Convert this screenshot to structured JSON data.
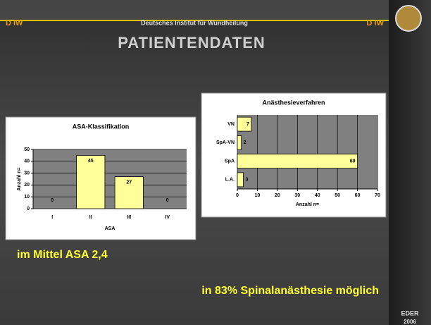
{
  "header": {
    "left": "D IW",
    "center": "Deutsches Institut für Wundheilung",
    "right": "D IW"
  },
  "title": "PATIENTENDATEN",
  "notes": [
    "im Mittel ASA 2,4",
    "in 83% Spinalanästhesie möglich"
  ],
  "footer": {
    "name": "EDER",
    "year": "2006"
  },
  "chart_data": [
    {
      "type": "bar",
      "orientation": "vertical",
      "title": "ASA-Klassifikation",
      "categories": [
        "I",
        "II",
        "III",
        "IV"
      ],
      "values": [
        0,
        45,
        27,
        0
      ],
      "color": "#ffff99",
      "xlabel": "ASA",
      "ylabel": "Anzahl n=",
      "ylim": [
        0,
        50
      ],
      "yticks": [
        0,
        10,
        20,
        30,
        40,
        50
      ],
      "grid": true
    },
    {
      "type": "bar",
      "orientation": "horizontal",
      "title": "Anästhesieverfahren",
      "categories": [
        "VN",
        "SpA-VN",
        "SpA",
        "L.A."
      ],
      "values": [
        7,
        2,
        60,
        3
      ],
      "color": "#ffff99",
      "xlabel": "Anzahl n=",
      "xlim": [
        0,
        70
      ],
      "xticks": [
        0,
        10,
        20,
        30,
        40,
        50,
        60,
        70
      ],
      "grid": true
    }
  ]
}
